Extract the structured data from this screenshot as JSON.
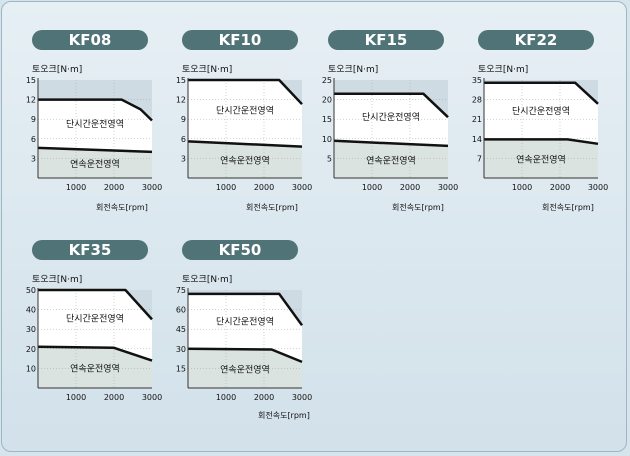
{
  "chart_data": [
    {
      "type": "area",
      "title": "KF08",
      "ylabel": "토오크[N·m]",
      "xlabel": "회전속도[rpm]",
      "ylim": [
        0,
        15
      ],
      "yticks": [
        3,
        6,
        9,
        12,
        15
      ],
      "xlim": [
        0,
        3000
      ],
      "xticks": [
        1000,
        2000,
        3000
      ],
      "series": [
        {
          "name": "단시간운전영역",
          "x": [
            0,
            2200,
            2700,
            3000
          ],
          "y": [
            12,
            12,
            10.5,
            8.8
          ]
        },
        {
          "name": "연속운전영역",
          "x": [
            0,
            3000
          ],
          "y": [
            4.6,
            4.0
          ]
        }
      ]
    },
    {
      "type": "area",
      "title": "KF10",
      "ylabel": "토오크[N·m]",
      "xlabel": "회전속도[rpm]",
      "ylim": [
        0,
        15
      ],
      "yticks": [
        3,
        6,
        9,
        12,
        15
      ],
      "xlim": [
        0,
        3000
      ],
      "xticks": [
        1000,
        2000,
        3000
      ],
      "series": [
        {
          "name": "단시간운전영역",
          "x": [
            0,
            2400,
            3000
          ],
          "y": [
            15,
            15,
            11.3
          ]
        },
        {
          "name": "연속운전영역",
          "x": [
            0,
            3000
          ],
          "y": [
            5.6,
            4.8
          ]
        }
      ]
    },
    {
      "type": "area",
      "title": "KF15",
      "ylabel": "토오크[N·m]",
      "xlabel": "회전속도[rpm]",
      "ylim": [
        0,
        25
      ],
      "yticks": [
        5,
        10,
        15,
        20,
        25
      ],
      "xlim": [
        0,
        3000
      ],
      "xticks": [
        1000,
        2000,
        3000
      ],
      "series": [
        {
          "name": "단시간운전영역",
          "x": [
            0,
            2350,
            3000
          ],
          "y": [
            21.5,
            21.5,
            15.5
          ]
        },
        {
          "name": "연속운전영역",
          "x": [
            0,
            3000
          ],
          "y": [
            9.5,
            8.2
          ]
        }
      ]
    },
    {
      "type": "area",
      "title": "KF22",
      "ylabel": "토오크[N·m]",
      "xlabel": "회전속도[rpm]",
      "ylim": [
        0,
        35
      ],
      "yticks": [
        7,
        14,
        21,
        28,
        35
      ],
      "xlim": [
        0,
        3000
      ],
      "xticks": [
        1000,
        2000,
        3000
      ],
      "series": [
        {
          "name": "단시간운전영역",
          "x": [
            0,
            2400,
            3000
          ],
          "y": [
            34,
            34,
            26.5
          ]
        },
        {
          "name": "연속운전영역",
          "x": [
            0,
            2200,
            3000
          ],
          "y": [
            13.8,
            13.8,
            12.2
          ]
        }
      ]
    },
    {
      "type": "area",
      "title": "KF35",
      "ylabel": "토오크[N·m]",
      "xlabel": "회전속도[rpm]",
      "ylim": [
        0,
        50
      ],
      "yticks": [
        10,
        20,
        30,
        40,
        50
      ],
      "xlim": [
        0,
        3000
      ],
      "xticks": [
        1000,
        2000,
        3000
      ],
      "series": [
        {
          "name": "단시간운전영역",
          "x": [
            0,
            2300,
            3000
          ],
          "y": [
            50,
            50,
            35
          ]
        },
        {
          "name": "연속운전영역",
          "x": [
            0,
            2000,
            3000
          ],
          "y": [
            21,
            20.5,
            14
          ]
        }
      ]
    },
    {
      "type": "area",
      "title": "KF50",
      "ylabel": "토오크[N·m]",
      "xlabel": "회전속도[rpm]",
      "ylim": [
        0,
        75
      ],
      "yticks": [
        15,
        30,
        45,
        60,
        75
      ],
      "xlim": [
        0,
        3000
      ],
      "xticks": [
        1000,
        2000,
        3000
      ],
      "series": [
        {
          "name": "단시간운전영역",
          "x": [
            0,
            2400,
            3000
          ],
          "y": [
            72,
            72,
            48
          ]
        },
        {
          "name": "연속운전영역",
          "x": [
            0,
            2200,
            3000
          ],
          "y": [
            30,
            29.5,
            20
          ]
        }
      ]
    }
  ],
  "colors": {
    "short_term_fill": "#ffffff",
    "continuous_fill": "#dbe3e1",
    "curve": "#111111",
    "title_pill": "#4f7376"
  }
}
